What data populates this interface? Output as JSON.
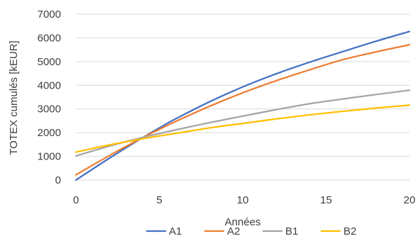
{
  "chart_data": {
    "type": "line",
    "title": "",
    "xlabel": "Années",
    "ylabel": "TOTEX cumulés [kEUR]",
    "xlim": [
      0,
      20
    ],
    "ylim": [
      0,
      7000
    ],
    "xticks": [
      0,
      5,
      10,
      15,
      20
    ],
    "yticks": [
      0,
      1000,
      2000,
      3000,
      4000,
      5000,
      6000,
      7000
    ],
    "grid": "horizontal",
    "legend_position": "bottom",
    "x": [
      0,
      2,
      4,
      5,
      6,
      8,
      10,
      12,
      14,
      16,
      18,
      20
    ],
    "series": [
      {
        "name": "A1",
        "color": "#4472C4",
        "values": [
          0,
          920,
          1790,
          2200,
          2590,
          3300,
          3930,
          4480,
          4970,
          5420,
          5860,
          6270
        ]
      },
      {
        "name": "A2",
        "color": "#ED7D31",
        "values": [
          220,
          1030,
          1790,
          2140,
          2480,
          3110,
          3680,
          4190,
          4650,
          5080,
          5410,
          5710
        ]
      },
      {
        "name": "B1",
        "color": "#A5A5A5",
        "values": [
          1020,
          1430,
          1800,
          1960,
          2120,
          2420,
          2700,
          2970,
          3220,
          3420,
          3610,
          3790
        ]
      },
      {
        "name": "B2",
        "color": "#FFC000",
        "values": [
          1180,
          1480,
          1740,
          1860,
          1970,
          2200,
          2390,
          2580,
          2750,
          2900,
          3040,
          3160
        ]
      }
    ]
  }
}
